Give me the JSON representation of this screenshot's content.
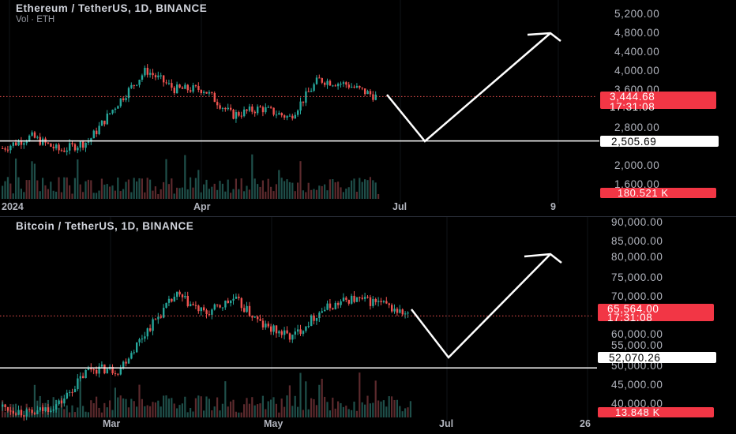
{
  "charts": {
    "eth": {
      "title": "Ethereum / TetherUS, 1D, BINANCE",
      "volume_label": "Vol · ETH",
      "price_tag": "3,444.68",
      "countdown": "17:31:08",
      "level_tag": "2,505.69",
      "volume_tag": "180.521 K",
      "price_ticks": [
        "5,200.00",
        "4,800.00",
        "4,400.00",
        "4,000.00",
        "3,600.00",
        "2,800.00",
        "2,000.00",
        "1,600.00"
      ],
      "time_ticks": [
        "2024",
        "Apr",
        "Jul",
        "9"
      ]
    },
    "btc": {
      "title": "Bitcoin / TetherUS, 1D, BINANCE",
      "price_tag": "65,564.00",
      "countdown": "17:31:08",
      "level_tag": "52,070.26",
      "volume_tag": "13.848 K",
      "price_ticks": [
        "90,000.00",
        "85,000.00",
        "80,000.00",
        "75,000.00",
        "70,000.00",
        "60,000.00",
        "55,000.00",
        "50,000.00",
        "45,000.00",
        "40,000.00"
      ],
      "time_ticks": [
        "Mar",
        "May",
        "Jul",
        "26"
      ]
    }
  },
  "chart_data": [
    {
      "type": "candlestick",
      "title": "Ethereum / TetherUS, 1D, BINANCE",
      "y_ticks": [
        5200,
        4800,
        4400,
        4000,
        3600,
        2800,
        2000,
        1600
      ],
      "last_price": 3444.68,
      "support_level": 2505.69,
      "volume_last": "180.521 K",
      "close_path": [
        [
          "2024",
          2350
        ],
        [
          "Jan",
          2600
        ],
        [
          "Feb",
          2300
        ],
        [
          "Feb",
          2500
        ],
        [
          "Mar",
          3300
        ],
        [
          "Mar",
          4000
        ],
        [
          "Mar",
          3600
        ],
        [
          "Apr",
          3600
        ],
        [
          "Apr",
          3050
        ],
        [
          "Apr",
          3200
        ],
        [
          "May",
          3000
        ],
        [
          "May",
          3800
        ],
        [
          "Jun",
          3700
        ],
        [
          "Jun",
          3444.68
        ]
      ],
      "projection": [
        3444.68,
        2505.69,
        4800
      ],
      "colors": {
        "up": "#26a69a",
        "down": "#ef5350",
        "projection": "#ffffff",
        "level": "#ffffff"
      }
    },
    {
      "type": "candlestick",
      "title": "Bitcoin / TetherUS, 1D, BINANCE",
      "y_ticks": [
        90000,
        85000,
        80000,
        75000,
        70000,
        60000,
        55000,
        50000,
        45000,
        40000
      ],
      "last_price": 65564.0,
      "support_level": 52070.26,
      "volume_last": "13.848 K",
      "close_path": [
        [
          "Jan",
          42000
        ],
        [
          "Jan",
          40000
        ],
        [
          "Feb",
          43000
        ],
        [
          "Feb",
          52000
        ],
        [
          "Feb",
          51500
        ],
        [
          "Mar",
          62000
        ],
        [
          "Mar",
          71000
        ],
        [
          "Mar",
          66000
        ],
        [
          "Apr",
          70000
        ],
        [
          "Apr",
          63000
        ],
        [
          "May",
          60000
        ],
        [
          "May",
          67000
        ],
        [
          "May",
          70000
        ],
        [
          "Jun",
          69000
        ],
        [
          "Jun",
          65564
        ]
      ],
      "projection": [
        65564,
        52070.26,
        81000
      ],
      "colors": {
        "up": "#26a69a",
        "down": "#ef5350",
        "projection": "#ffffff",
        "level": "#ffffff"
      }
    }
  ]
}
